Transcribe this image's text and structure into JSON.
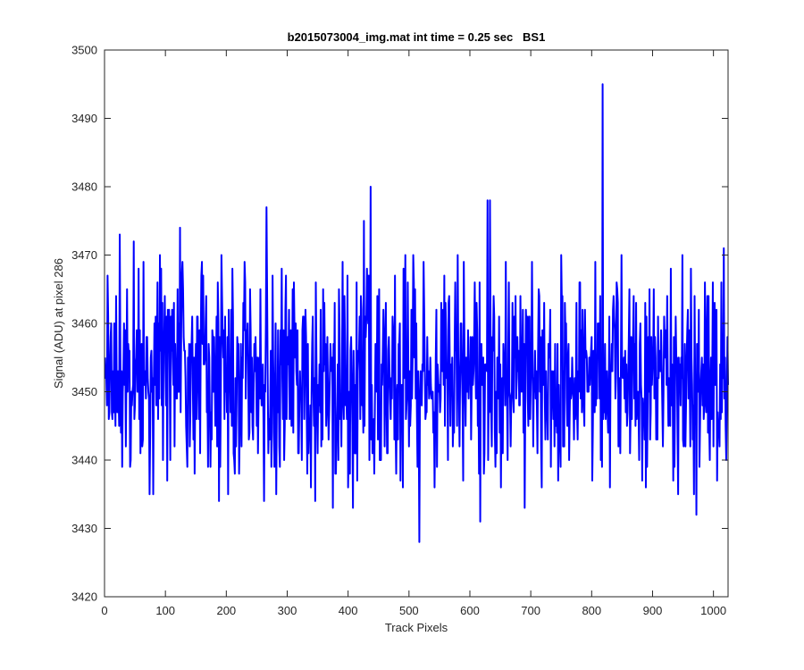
{
  "chart_data": {
    "type": "line",
    "title": "b2015073004_img.mat int time = 0.25 sec   BS1",
    "xlabel": "Track Pixels",
    "ylabel": "Signal (ADU) at pixel 286",
    "xlim": [
      0,
      1024
    ],
    "ylim": [
      3420,
      3500
    ],
    "xticks": [
      0,
      100,
      200,
      300,
      400,
      500,
      600,
      700,
      800,
      900,
      1000
    ],
    "yticks": [
      3420,
      3430,
      3440,
      3450,
      3460,
      3470,
      3480,
      3490,
      3500
    ],
    "grid": false,
    "line_color": "#0000ff",
    "series": [
      {
        "x_start": 1,
        "x_step": 1,
        "noise_model": {
          "mean": 3452.5,
          "std": 8.0,
          "seed": 286
        },
        "spikes": [
          {
            "x": 25,
            "y": 3473
          },
          {
            "x": 48,
            "y": 3472
          },
          {
            "x": 64,
            "y": 3469
          },
          {
            "x": 74,
            "y": 3435
          },
          {
            "x": 124,
            "y": 3474
          },
          {
            "x": 188,
            "y": 3434
          },
          {
            "x": 262,
            "y": 3434
          },
          {
            "x": 266,
            "y": 3477
          },
          {
            "x": 346,
            "y": 3434
          },
          {
            "x": 375,
            "y": 3433
          },
          {
            "x": 408,
            "y": 3433
          },
          {
            "x": 426,
            "y": 3475
          },
          {
            "x": 437,
            "y": 3480
          },
          {
            "x": 517,
            "y": 3428
          },
          {
            "x": 617,
            "y": 3431
          },
          {
            "x": 629,
            "y": 3478
          },
          {
            "x": 633,
            "y": 3478
          },
          {
            "x": 690,
            "y": 3433
          },
          {
            "x": 818,
            "y": 3495
          },
          {
            "x": 972,
            "y": 3432
          },
          {
            "x": 1017,
            "y": 3471
          }
        ]
      }
    ]
  }
}
